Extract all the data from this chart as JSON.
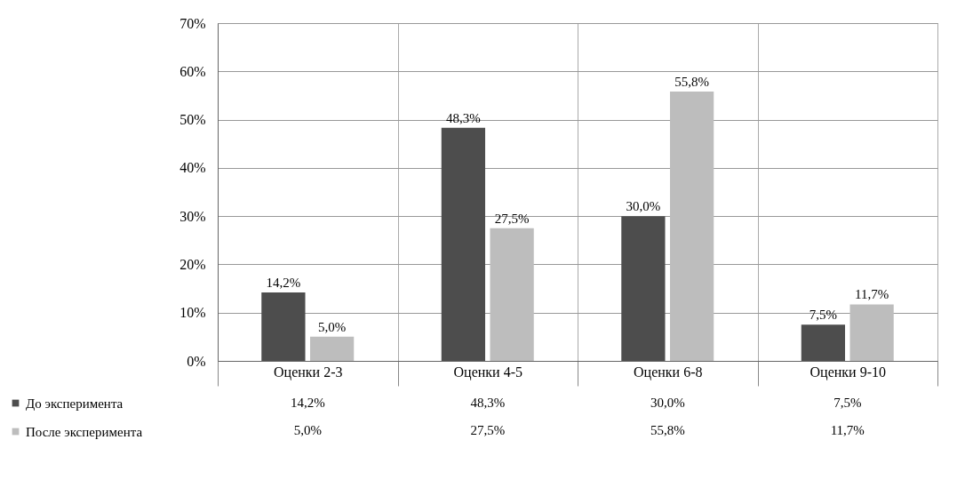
{
  "chart_data": {
    "type": "bar",
    "categories": [
      "Оценки 2-3",
      "Оценки 4-5",
      "Оценки 6-8",
      "Оценки 9-10"
    ],
    "series": [
      {
        "name": "До эксперимента",
        "color": "#4d4d4d",
        "values": [
          14.2,
          48.3,
          30.0,
          7.5
        ],
        "value_labels": [
          "14,2%",
          "48,3%",
          "30,0%",
          "7,5%"
        ]
      },
      {
        "name": "После эксперимента",
        "color": "#bdbdbd",
        "values": [
          5.0,
          27.5,
          55.8,
          11.7
        ],
        "value_labels": [
          "5,0%",
          "27,5%",
          "55,8%",
          "11,7%"
        ]
      }
    ],
    "ylim": [
      0,
      70
    ],
    "yticks": [
      {
        "value": 0,
        "label": "0%"
      },
      {
        "value": 10,
        "label": "10%"
      },
      {
        "value": 20,
        "label": "20%"
      },
      {
        "value": 30,
        "label": "30%"
      },
      {
        "value": 40,
        "label": "40%"
      },
      {
        "value": 50,
        "label": "50%"
      },
      {
        "value": 60,
        "label": "60%"
      },
      {
        "value": 70,
        "label": "70%"
      }
    ],
    "grid": "y",
    "legend": "bottom left"
  }
}
